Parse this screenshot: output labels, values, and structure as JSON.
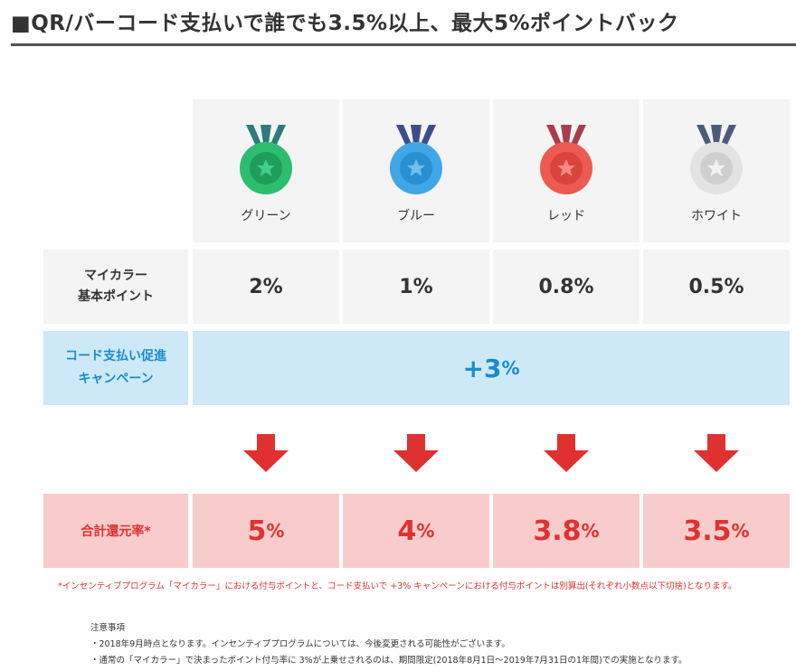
{
  "title": "■QR/バーコード支払いで誰でも3.5%以上、最大5%ポイントバック",
  "medals": [
    {
      "name": "グリーン",
      "color": "#2dbd6e",
      "ribbon": "#2d7b7b",
      "rate": "2%",
      "total": "5",
      "total_pct": "%"
    },
    {
      "name": "ブルー",
      "color": "#3fa7e6",
      "ribbon": "#3d4d8c",
      "rate": "1%",
      "total": "4",
      "total_pct": "%"
    },
    {
      "name": "レッド",
      "color": "#ec5a50",
      "ribbon": "#a83d4d",
      "rate": "0.8%",
      "total": "3.8",
      "total_pct": "%"
    },
    {
      "name": "ホワイト",
      "color": "#e3e3e3",
      "ribbon": "#4d5b7a",
      "rate": "0.5%",
      "total": "3.5",
      "total_pct": "%"
    }
  ],
  "rows": {
    "base_label_line1": "マイカラー",
    "base_label_line2": "基本ポイント",
    "campaign_label_line1": "コード支払い促進",
    "campaign_label_line2": "キャンペーン",
    "campaign_value": "+3",
    "campaign_pct": "%",
    "total_label": "合計還元率*"
  },
  "footnote": "*インセンティブプログラム「マイカラー」における付与ポイントと、コード支払いで +3% キャンペーンにおける付与ポイントは別算出(それぞれ小数点以下切捨)となります。",
  "notes": {
    "heading": "注意事項",
    "items": [
      "・2018年9月時点となります。インセンティブプログラムについては、今後変更される可能性がございます。",
      "・通常の「マイカラー」で決まったポイント付与率に 3%が上乗せされるのは、期間限定(2018年8月1日～2019年7月31日の1年間)での実施となります。"
    ]
  },
  "colors": {
    "campaign": "#1a8ccc",
    "campaign_bg": "#cde9f7",
    "total": "#e03131",
    "total_bg": "#f8cccb",
    "arrow": "#e03131"
  }
}
